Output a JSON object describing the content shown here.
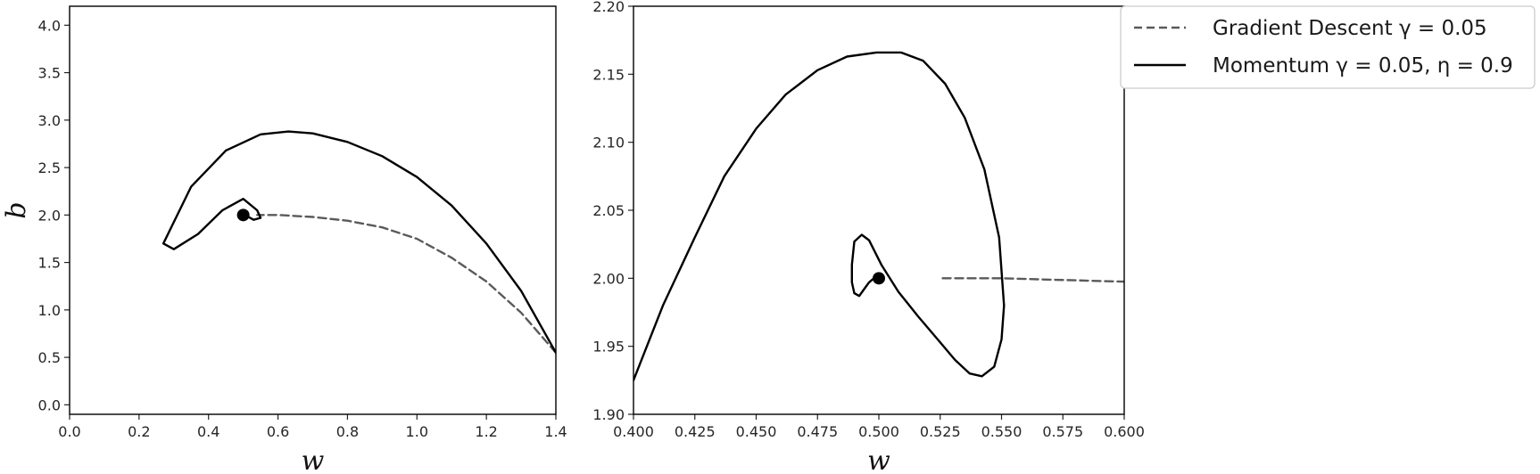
{
  "legend": {
    "position": "outside-right",
    "entries": [
      {
        "label": "Gradient Descent γ = 0.05",
        "style": "dashed",
        "color": "#5a5a5a"
      },
      {
        "label": "Momentum γ = 0.05, η = 0.9",
        "style": "solid",
        "color": "#000000"
      }
    ]
  },
  "chart_data": [
    {
      "type": "line",
      "title": "",
      "xlabel": "w",
      "ylabel": "b",
      "xlim": [
        0.0,
        1.4
      ],
      "ylim": [
        -0.1,
        4.2
      ],
      "xticks": [
        0.0,
        0.2,
        0.4,
        0.6,
        0.8,
        1.0,
        1.2,
        1.4
      ],
      "xtick_labels": [
        "0.0",
        "0.2",
        "0.4",
        "0.6",
        "0.8",
        "1.0",
        "1.2",
        "1.4"
      ],
      "yticks": [
        0.0,
        0.5,
        1.0,
        1.5,
        2.0,
        2.5,
        3.0,
        3.5,
        4.0
      ],
      "ytick_labels": [
        "0.0",
        "0.5",
        "1.0",
        "1.5",
        "2.0",
        "2.5",
        "3.0",
        "3.5",
        "4.0"
      ],
      "grid": false,
      "series": [
        {
          "style": "dashed",
          "color": "#5a5a5a",
          "x": [
            1.4,
            1.3,
            1.2,
            1.1,
            1.0,
            0.9,
            0.8,
            0.7,
            0.6,
            0.54
          ],
          "y": [
            0.55,
            0.97,
            1.3,
            1.55,
            1.75,
            1.87,
            1.94,
            1.98,
            2.0,
            2.0
          ]
        },
        {
          "style": "solid",
          "color": "#000000",
          "x": [
            1.4,
            1.3,
            1.2,
            1.1,
            1.0,
            0.9,
            0.8,
            0.7,
            0.63,
            0.55,
            0.45,
            0.35,
            0.29,
            0.27,
            0.3,
            0.37,
            0.44,
            0.5,
            0.54,
            0.55,
            0.53,
            0.51,
            0.51,
            0.5
          ],
          "y": [
            0.55,
            1.2,
            1.7,
            2.1,
            2.4,
            2.62,
            2.77,
            2.86,
            2.88,
            2.85,
            2.68,
            2.3,
            1.85,
            1.7,
            1.64,
            1.8,
            2.05,
            2.17,
            2.05,
            1.97,
            1.95,
            1.99,
            2.03,
            2.0
          ]
        }
      ],
      "markers": [
        {
          "x": 0.5,
          "y": 2.0
        }
      ]
    },
    {
      "type": "line",
      "title": "",
      "xlabel": "w",
      "ylabel": "",
      "xlim": [
        0.4,
        0.6
      ],
      "ylim": [
        1.9,
        2.2
      ],
      "xticks": [
        0.4,
        0.425,
        0.45,
        0.475,
        0.5,
        0.525,
        0.55,
        0.575,
        0.6
      ],
      "xtick_labels": [
        "0.400",
        "0.425",
        "0.450",
        "0.475",
        "0.500",
        "0.525",
        "0.550",
        "0.575",
        "0.600"
      ],
      "yticks": [
        1.9,
        1.95,
        2.0,
        2.05,
        2.1,
        2.15,
        2.2
      ],
      "ytick_labels": [
        "1.90",
        "1.95",
        "2.00",
        "2.05",
        "2.10",
        "2.15",
        "2.20"
      ],
      "grid": false,
      "series": [
        {
          "style": "dashed",
          "color": "#5a5a5a",
          "x": [
            0.526,
            0.54,
            0.55,
            0.56,
            0.57,
            0.58,
            0.59,
            0.6
          ],
          "y": [
            2.0,
            2.0,
            2.0,
            1.9995,
            1.999,
            1.9985,
            1.998,
            1.9975
          ]
        },
        {
          "style": "solid",
          "color": "#000000",
          "x": [
            0.4,
            0.412,
            0.425,
            0.437,
            0.45,
            0.462,
            0.475,
            0.487,
            0.499,
            0.509,
            0.518,
            0.527,
            0.535,
            0.543,
            0.549,
            0.551,
            0.55,
            0.547,
            0.542,
            0.537,
            0.531,
            0.524,
            0.516,
            0.508,
            0.501,
            0.496,
            0.493,
            0.49,
            0.489,
            0.489,
            0.49,
            0.492,
            0.494,
            0.496,
            0.498,
            0.5
          ],
          "y": [
            1.925,
            1.98,
            2.03,
            2.075,
            2.11,
            2.135,
            2.153,
            2.163,
            2.166,
            2.166,
            2.16,
            2.143,
            2.118,
            2.08,
            2.03,
            1.98,
            1.955,
            1.935,
            1.928,
            1.93,
            1.94,
            1.955,
            1.972,
            1.99,
            2.01,
            2.028,
            2.032,
            2.027,
            2.01,
            1.997,
            1.989,
            1.987,
            1.992,
            1.997,
            2.0,
            2.0
          ]
        }
      ],
      "markers": [
        {
          "x": 0.5,
          "y": 2.0
        }
      ]
    }
  ]
}
